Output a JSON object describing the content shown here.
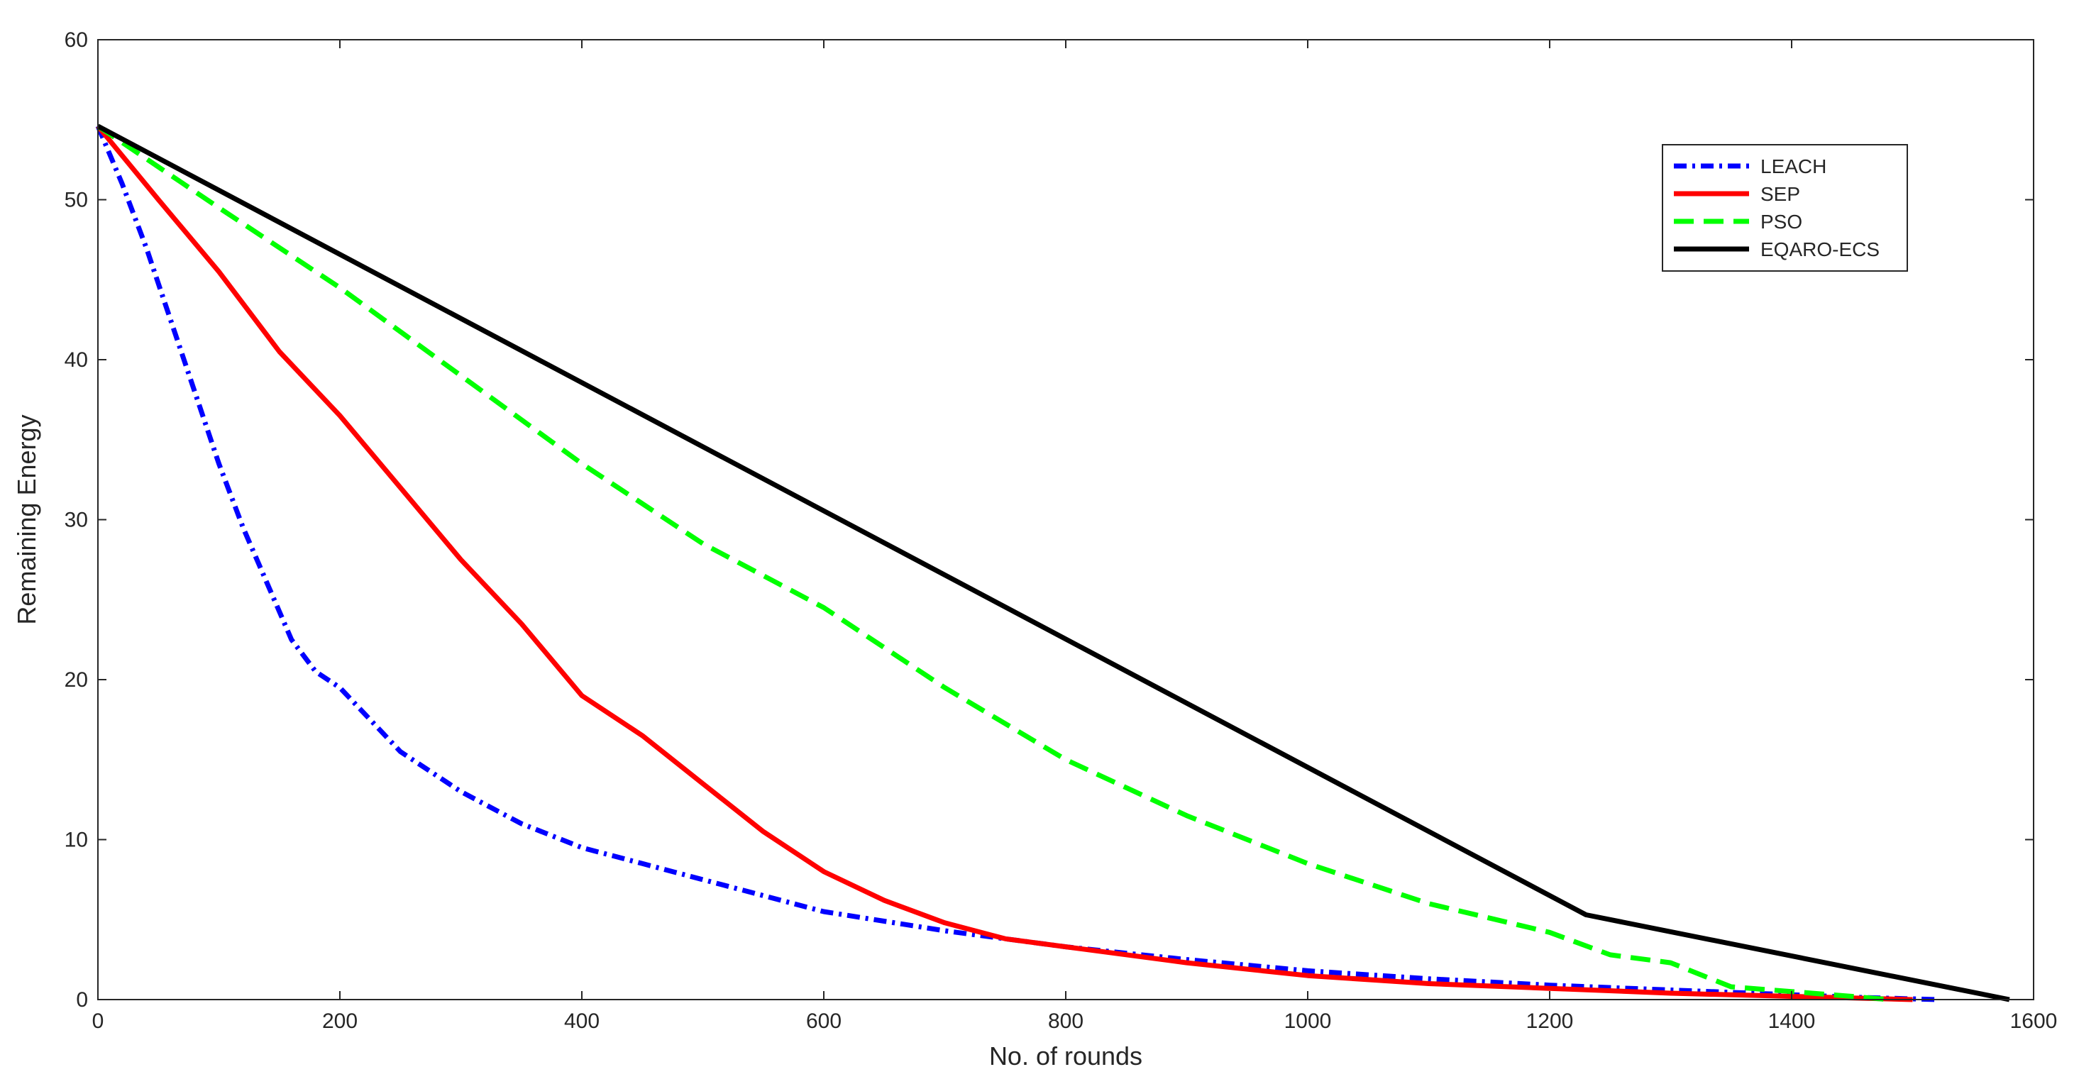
{
  "chart_data": {
    "type": "line",
    "title": "",
    "xlabel": "No. of rounds",
    "ylabel": "Remaining Energy",
    "xlim": [
      0,
      1600
    ],
    "ylim": [
      0,
      60
    ],
    "xticks": [
      0,
      200,
      400,
      600,
      800,
      1000,
      1200,
      1400,
      1600
    ],
    "yticks": [
      0,
      10,
      20,
      30,
      40,
      50,
      60
    ],
    "grid": false,
    "legend_position": "top-right",
    "series": [
      {
        "name": "LEACH",
        "color": "#0000ff",
        "style": "dash-dot",
        "x": [
          0,
          20,
          40,
          60,
          80,
          100,
          120,
          140,
          160,
          180,
          200,
          250,
          300,
          350,
          400,
          450,
          500,
          600,
          700,
          800,
          900,
          1000,
          1100,
          1200,
          1300,
          1400,
          1450,
          1520
        ],
        "y": [
          54.6,
          51,
          47,
          42.5,
          38,
          33.5,
          29.5,
          26,
          22.5,
          20.5,
          19.5,
          15.5,
          13,
          11,
          9.5,
          8.5,
          7.5,
          5.5,
          4.3,
          3.3,
          2.5,
          1.8,
          1.3,
          0.9,
          0.6,
          0.3,
          0.15,
          0
        ]
      },
      {
        "name": "SEP",
        "color": "#ff0000",
        "style": "solid",
        "x": [
          0,
          50,
          100,
          150,
          200,
          250,
          300,
          350,
          400,
          450,
          500,
          550,
          600,
          650,
          700,
          750,
          800,
          900,
          1000,
          1100,
          1200,
          1300,
          1400,
          1500
        ],
        "y": [
          54.6,
          50,
          45.5,
          40.5,
          36.5,
          32,
          27.5,
          23.5,
          19,
          16.5,
          13.5,
          10.5,
          8,
          6.2,
          4.8,
          3.8,
          3.3,
          2.3,
          1.5,
          1.0,
          0.7,
          0.4,
          0.2,
          0
        ]
      },
      {
        "name": "PSO",
        "color": "#00ff00",
        "style": "dashed",
        "x": [
          0,
          100,
          200,
          300,
          400,
          500,
          600,
          700,
          800,
          900,
          1000,
          1100,
          1200,
          1250,
          1300,
          1350,
          1400,
          1450,
          1480
        ],
        "y": [
          54.6,
          49.5,
          44.5,
          39,
          33.5,
          28.5,
          24.5,
          19.5,
          15,
          11.5,
          8.5,
          6,
          4.2,
          2.8,
          2.3,
          0.8,
          0.5,
          0.2,
          0
        ]
      },
      {
        "name": "EQARO-ECS",
        "color": "#000000",
        "style": "solid",
        "x": [
          0,
          1230,
          1580
        ],
        "y": [
          54.6,
          5.3,
          0
        ]
      }
    ]
  }
}
